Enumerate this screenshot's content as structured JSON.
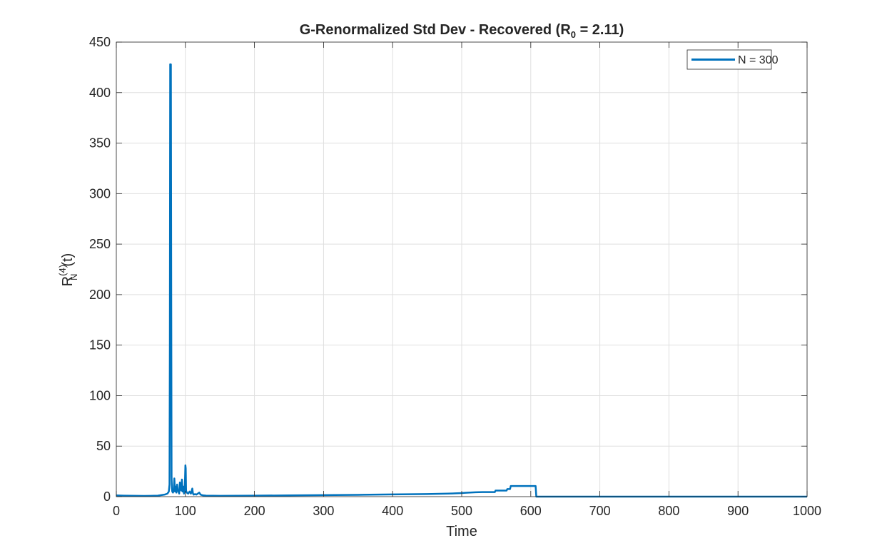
{
  "chart_data": {
    "type": "line",
    "title": "G-Renormalized Std Dev - Recovered (R",
    "title_subscript": "0",
    "title_tail": " = 2.11)",
    "xlabel": "Time",
    "ylabel_main": "R",
    "ylabel_sup": "(4)",
    "ylabel_sub": "N",
    "ylabel_tail": "(t)",
    "xlim": [
      0,
      1000
    ],
    "ylim": [
      0,
      450
    ],
    "xticks": [
      0,
      100,
      200,
      300,
      400,
      500,
      600,
      700,
      800,
      900,
      1000
    ],
    "yticks": [
      0,
      50,
      100,
      150,
      200,
      250,
      300,
      350,
      400,
      450
    ],
    "grid": true,
    "legend_position": "top-right",
    "series": [
      {
        "name": "N = 300",
        "color": "#0072BD",
        "x": [
          0,
          10,
          20,
          30,
          40,
          50,
          60,
          65,
          70,
          74,
          76,
          77,
          77.5,
          78,
          78.5,
          79,
          79.5,
          80,
          80.5,
          81,
          82,
          83,
          84,
          85,
          86,
          87,
          88,
          89,
          90,
          91,
          92,
          93,
          94,
          95,
          96,
          97,
          98,
          99,
          100,
          100.5,
          101,
          102,
          104,
          106,
          108,
          110,
          111,
          112,
          114,
          116,
          118,
          120,
          122,
          124,
          126,
          130,
          140,
          150,
          200,
          250,
          300,
          350,
          400,
          450,
          480,
          500,
          505,
          510,
          520,
          530,
          548,
          549,
          565,
          566,
          570,
          571,
          600,
          606,
          607,
          608,
          700,
          800,
          900,
          1000
        ],
        "values": [
          1.2,
          1.0,
          0.9,
          0.8,
          0.7,
          0.8,
          1.0,
          1.5,
          2.0,
          3.0,
          5.0,
          12.0,
          150.0,
          428.0,
          427.0,
          428.0,
          200.0,
          20.0,
          8.0,
          5.0,
          4.0,
          6.0,
          18.0,
          5.0,
          10.0,
          4.0,
          12.0,
          6.0,
          5.0,
          3.0,
          14.0,
          8.0,
          6.0,
          17.0,
          5.0,
          10.0,
          3.0,
          6.0,
          31.0,
          28.0,
          6.0,
          4.0,
          3.0,
          5.0,
          3.0,
          8.0,
          3.0,
          2.0,
          2.5,
          2.0,
          3.0,
          4.0,
          2.0,
          1.5,
          1.2,
          1.0,
          0.9,
          0.8,
          1.0,
          1.2,
          1.5,
          1.8,
          2.2,
          2.6,
          3.0,
          3.5,
          3.8,
          4.0,
          4.3,
          4.5,
          4.5,
          6.0,
          6.0,
          7.5,
          7.5,
          10.5,
          10.5,
          10.5,
          10.5,
          0.0,
          0.0,
          0.0,
          0.0,
          0.0
        ]
      }
    ]
  }
}
